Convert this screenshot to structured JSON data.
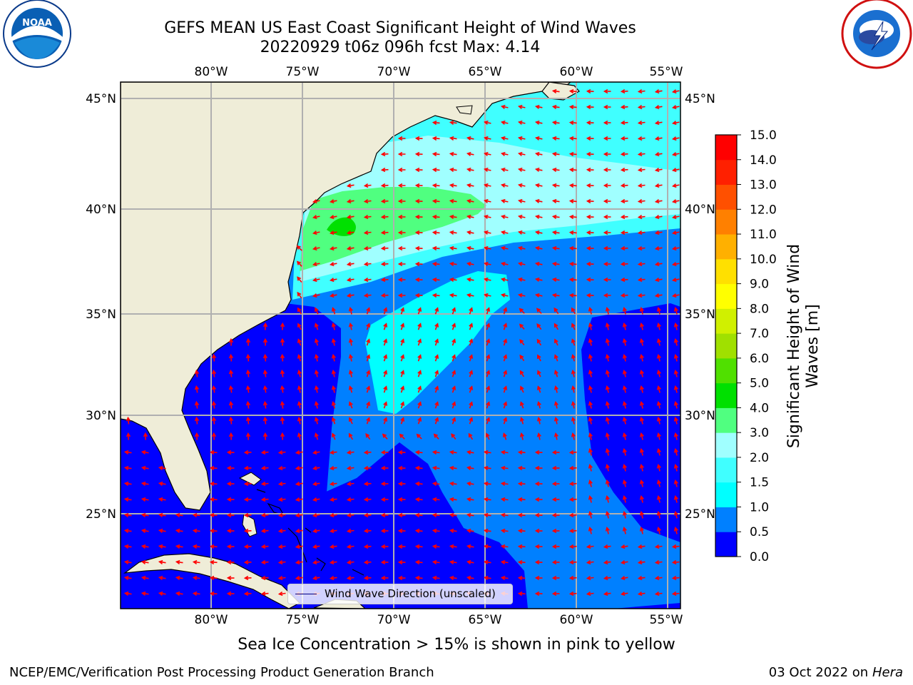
{
  "header": {
    "title_line1": "GEFS MEAN US East Coast Significant Height of Wind Waves",
    "title_line2": "20220929 t06z 096h fcst   Max: 4.14"
  },
  "map": {
    "lon_labels": [
      "80°W",
      "75°W",
      "70°W",
      "65°W",
      "60°W",
      "55°W"
    ],
    "lat_labels": [
      "45°N",
      "40°N",
      "35°N",
      "30°N",
      "25°N"
    ],
    "legend_label": "Wind Wave Direction (unscaled)",
    "arrow_color": "#ff0000",
    "land_color": "#efedd8"
  },
  "colorbar": {
    "label_line1": "Significant Height of Wind",
    "label_line2": "Waves [m]",
    "ticks": [
      "0.0",
      "0.5",
      "1.0",
      "1.5",
      "2.0",
      "3.0",
      "4.0",
      "5.0",
      "6.0",
      "7.0",
      "8.0",
      "9.0",
      "10.0",
      "11.0",
      "12.0",
      "13.0",
      "14.0",
      "15.0"
    ],
    "colors": [
      "#0000ff",
      "#0080ff",
      "#00ffff",
      "#40ffff",
      "#a0ffff",
      "#50ff80",
      "#00e000",
      "#50e000",
      "#a0e000",
      "#d0f000",
      "#ffff00",
      "#ffe000",
      "#ffb000",
      "#ff8000",
      "#ff5000",
      "#ff2000",
      "#ff0000"
    ]
  },
  "subtitle": "Sea Ice Concentration > 15% is shown in pink to yellow",
  "footer": {
    "left": "NCEP/EMC/Verification Post Processing Product Generation Branch",
    "right_date": "03 Oct 2022 on",
    "right_machine": "Hera"
  },
  "logos": {
    "left": "NOAA",
    "right": "NATIONAL WEATHER SERVICE"
  }
}
